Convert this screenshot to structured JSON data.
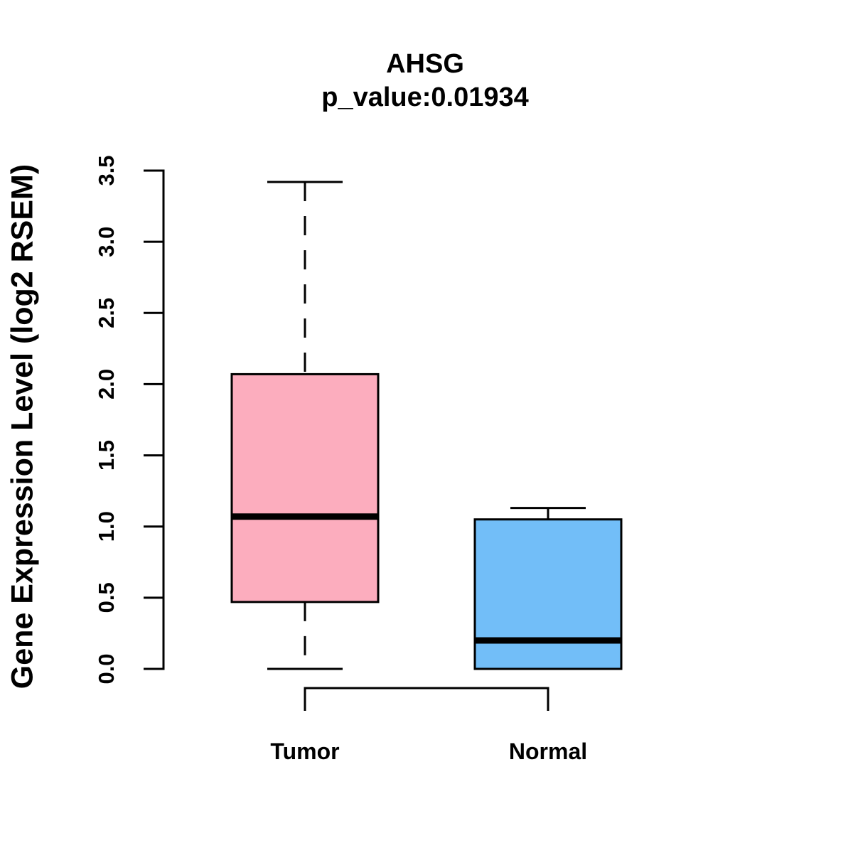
{
  "figure": {
    "title": "AHSG",
    "subtitle": "p_value:0.01934",
    "ylabel": "Gene Expression Level (log2 RSEM)"
  },
  "chart_data": {
    "type": "boxplot",
    "title": "AHSG",
    "subtitle": "p_value:0.01934",
    "xlabel": "",
    "ylabel": "Gene Expression Level (log2 RSEM)",
    "categories": [
      "Tumor",
      "Normal"
    ],
    "ylim": [
      0.0,
      3.5
    ],
    "yticks": [
      "0.0",
      "0.5",
      "1.0",
      "1.5",
      "2.0",
      "2.5",
      "3.0",
      "3.5"
    ],
    "grid": false,
    "legend": "none",
    "series": [
      {
        "name": "Tumor",
        "fill_color": "#FCADBE",
        "whisker_low": 0.0,
        "q1": 0.47,
        "median": 1.07,
        "q3": 2.07,
        "whisker_high": 3.42
      },
      {
        "name": "Normal",
        "fill_color": "#72BEF8",
        "whisker_low": 0.0,
        "q1": 0.0,
        "median": 0.2,
        "q3": 1.05,
        "whisker_high": 1.13
      }
    ],
    "comparison_bracket": {
      "from": "Tumor",
      "to": "Normal"
    }
  },
  "colors": {
    "box_border": "#000000",
    "text": "#000000",
    "background": "#FFFFFF"
  }
}
